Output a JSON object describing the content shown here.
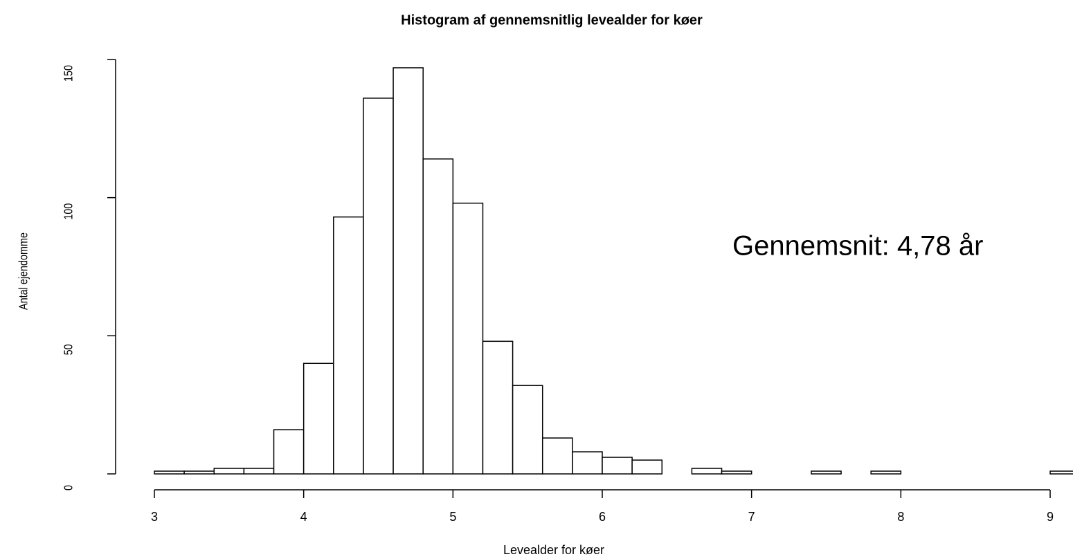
{
  "chart_data": {
    "type": "histogram",
    "title": "Histogram af gennemsnitlig levealder for køer",
    "xlabel": "Levealder for køer",
    "ylabel": "Antal ejendomme",
    "annotation": "Gennemsnit: 4,78 år",
    "bins": [
      3.0,
      3.2,
      3.4,
      3.6,
      3.8,
      4.0,
      4.2,
      4.4,
      4.6,
      4.8,
      5.0,
      5.2,
      5.4,
      5.6,
      5.8,
      6.0,
      6.2,
      6.4,
      6.6,
      6.8,
      7.0,
      7.2,
      7.4,
      7.6,
      7.8,
      8.0,
      8.2,
      8.4,
      8.6,
      8.8,
      9.0,
      9.2
    ],
    "values": [
      1,
      1,
      2,
      2,
      16,
      40,
      93,
      136,
      147,
      114,
      98,
      48,
      32,
      13,
      8,
      6,
      5,
      0,
      2,
      1,
      0,
      0,
      1,
      0,
      1,
      0,
      0,
      0,
      0,
      0,
      1
    ],
    "color": "#ffffff",
    "xlim": [
      3,
      9
    ],
    "xticks": [
      3,
      4,
      5,
      6,
      7,
      8,
      9
    ],
    "ylim": [
      0,
      150
    ],
    "yticks": [
      0,
      50,
      100,
      150
    ]
  }
}
